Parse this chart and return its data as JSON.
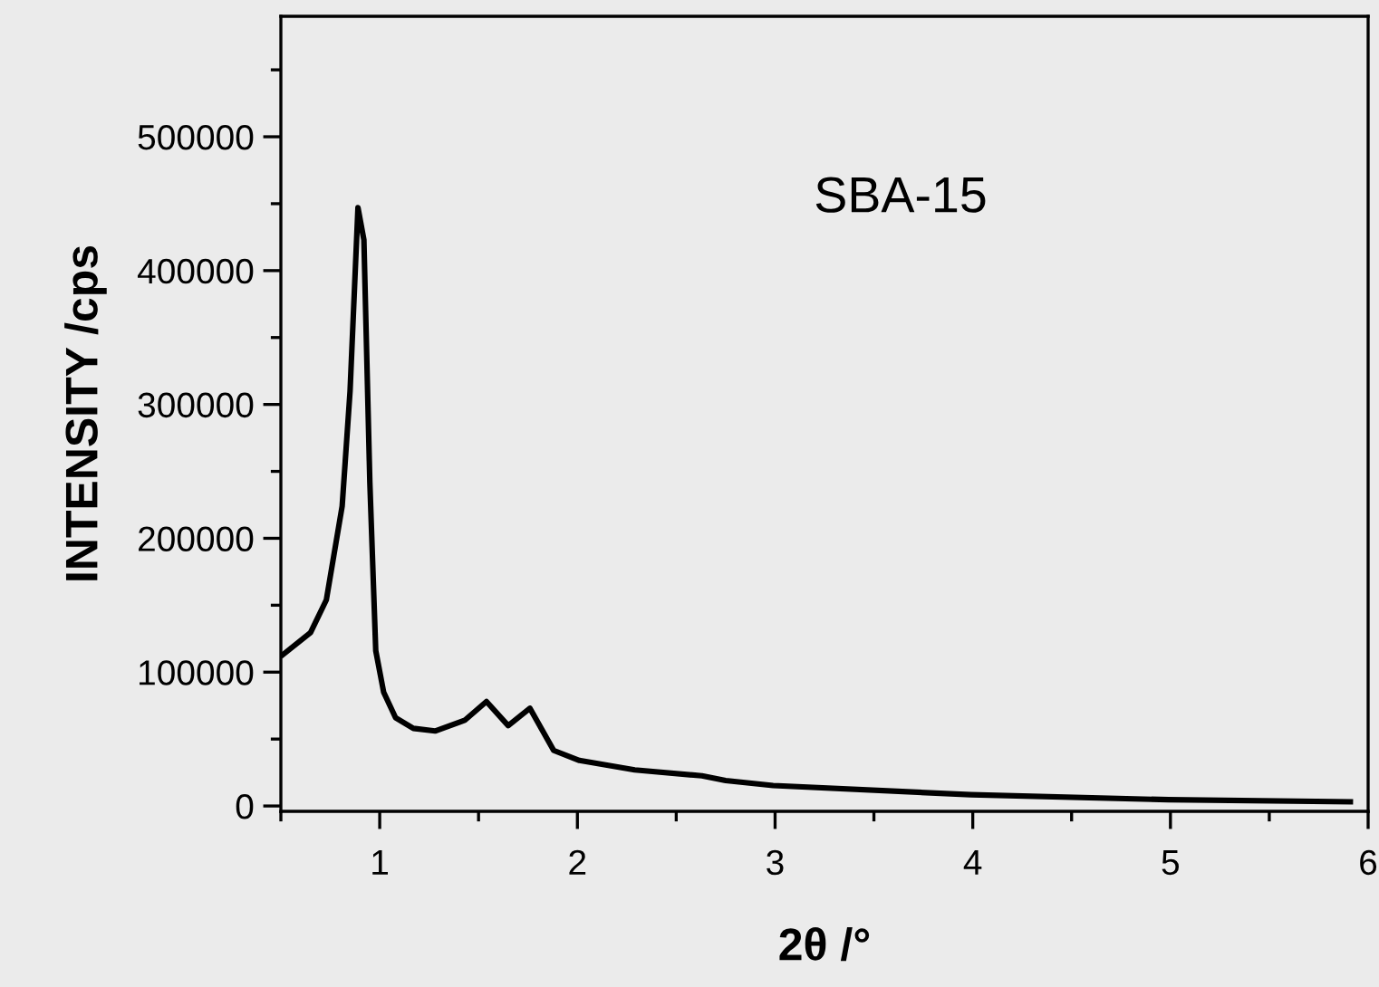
{
  "chart_data": {
    "type": "line",
    "xlabel": "2θ /°",
    "ylabel": "INTENSITY /cps",
    "annotations": [
      "SBA-15"
    ],
    "x": [
      0.51,
      0.65,
      0.73,
      0.81,
      0.85,
      0.89,
      0.92,
      0.95,
      0.98,
      1.02,
      1.08,
      1.17,
      1.28,
      1.43,
      1.54,
      1.65,
      1.76,
      1.88,
      2.01,
      2.29,
      2.63,
      2.75,
      2.99,
      3.99,
      4.99,
      5.91
    ],
    "series": [
      {
        "color": "#000000",
        "values": [
          113000,
          129500,
          154000,
          224000,
          310000,
          447000,
          423000,
          242000,
          116000,
          85000,
          66000,
          58000,
          56000,
          64000,
          78000,
          60000,
          73000,
          41500,
          34000,
          27000,
          22500,
          19000,
          15300,
          8400,
          4700,
          3100
        ]
      }
    ],
    "xlim": [
      0.5,
      6
    ],
    "ylim": [
      -4000,
      590000
    ],
    "xticks": [
      {
        "value": 0.5,
        "label": null
      },
      1,
      {
        "value": 1.5,
        "label": null
      },
      2,
      {
        "value": 2.5,
        "label": null
      },
      3,
      {
        "value": 3.5,
        "label": null
      },
      4,
      {
        "value": 4.5,
        "label": null
      },
      5,
      {
        "value": 5.5,
        "label": null
      },
      6
    ],
    "yticks": [
      0,
      {
        "value": 50000,
        "label": null
      },
      100000,
      {
        "value": 150000,
        "label": null
      },
      200000,
      {
        "value": 250000,
        "label": null
      },
      300000,
      {
        "value": 350000,
        "label": null
      },
      400000,
      {
        "value": 450000,
        "label": null
      },
      500000,
      {
        "value": 550000,
        "label": null
      }
    ],
    "grid": false,
    "legend": false,
    "marker": "none",
    "line_style": "solid"
  }
}
